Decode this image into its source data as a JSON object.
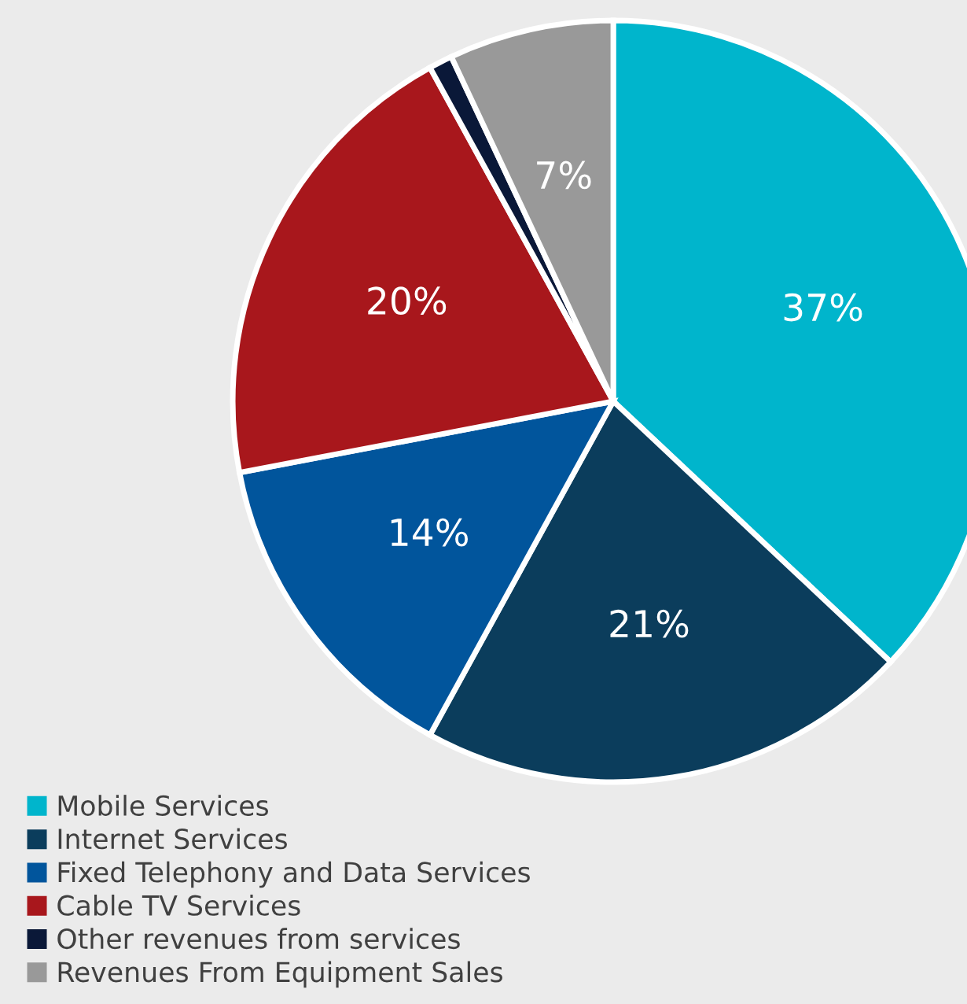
{
  "chart_data": {
    "type": "pie",
    "categories": [
      "Mobile Services",
      "Internet Services",
      "Fixed Telephony and Data Services",
      "Cable TV Services",
      "Other revenues from services",
      "Revenues From Equipment Sales"
    ],
    "values": [
      37,
      21,
      14,
      20,
      1,
      7
    ],
    "value_labels": [
      "37%",
      "21%",
      "14%",
      "20%",
      null,
      "7%"
    ],
    "colors": [
      "#00b5cc",
      "#0b3d5c",
      "#01559c",
      "#a8171c",
      "#0a1838",
      "#999999"
    ],
    "legend": "bottom left"
  }
}
